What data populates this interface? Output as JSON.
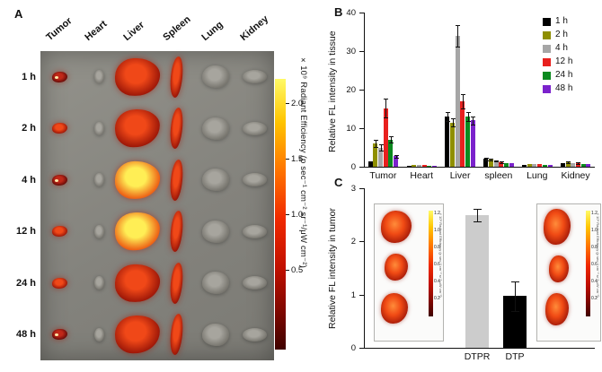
{
  "panels": {
    "a": "A",
    "b": "B",
    "c": "C"
  },
  "panelA": {
    "organ_labels": [
      "Tumor",
      "Heart",
      "Liver",
      "Spleen",
      "Lung",
      "Kidney"
    ],
    "time_labels": [
      "1 h",
      "2 h",
      "4 h",
      "12 h",
      "24 h",
      "48 h"
    ],
    "colorbar": {
      "title": "×10⁹ Radiant Efficiency (p sec⁻¹ cm⁻² sr⁻¹/μW cm⁻²)",
      "ticks": [
        "2.0",
        "1.5",
        "1.0",
        "0.5"
      ]
    },
    "heatmap": [
      [
        1,
        0,
        2,
        2,
        0,
        0
      ],
      [
        2,
        0,
        2,
        2,
        0,
        0
      ],
      [
        1,
        0,
        4,
        2,
        0,
        0
      ],
      [
        2,
        0,
        4,
        2,
        0,
        0
      ],
      [
        2,
        0,
        2,
        2,
        0,
        0
      ],
      [
        1,
        0,
        2,
        2,
        0,
        0
      ]
    ]
  },
  "chart_data": [
    {
      "type": "bar",
      "panel": "B",
      "ylabel": "Relative FL intensity in tissue",
      "ylim": [
        0,
        40
      ],
      "yticks": [
        0,
        10,
        20,
        30,
        40
      ],
      "categories": [
        "Tumor",
        "Heart",
        "Liver",
        "spleen",
        "Lung",
        "Kidney"
      ],
      "legend_position": "top-right",
      "series": [
        {
          "name": "1 h",
          "color": "#000000",
          "values": [
            1.3,
            0.3,
            13.0,
            2.0,
            0.5,
            0.9
          ],
          "errors": [
            0.2,
            0.05,
            1.2,
            0.3,
            0.1,
            0.15
          ]
        },
        {
          "name": "2 h",
          "color": "#8f8f00",
          "values": [
            6.0,
            0.35,
            11.5,
            1.9,
            0.7,
            1.1
          ],
          "errors": [
            0.9,
            0.05,
            1.0,
            0.3,
            0.1,
            0.2
          ]
        },
        {
          "name": "4 h",
          "color": "#a6a6a6",
          "values": [
            5.0,
            0.4,
            34.0,
            1.5,
            0.6,
            0.85
          ],
          "errors": [
            0.7,
            0.05,
            2.8,
            0.2,
            0.1,
            0.15
          ]
        },
        {
          "name": "12 h",
          "color": "#e8201e",
          "values": [
            15.2,
            0.4,
            17.0,
            1.1,
            0.8,
            0.95
          ],
          "errors": [
            2.4,
            0.05,
            1.8,
            0.2,
            0.15,
            0.2
          ]
        },
        {
          "name": "24 h",
          "color": "#0b8a1f",
          "values": [
            7.0,
            0.3,
            13.0,
            0.9,
            0.5,
            0.7
          ],
          "errors": [
            0.8,
            0.05,
            1.2,
            0.15,
            0.1,
            0.1
          ]
        },
        {
          "name": "48 h",
          "color": "#7b22cc",
          "values": [
            2.7,
            0.3,
            12.0,
            0.85,
            0.5,
            0.6
          ],
          "errors": [
            0.4,
            0.05,
            1.0,
            0.15,
            0.1,
            0.1
          ]
        }
      ]
    },
    {
      "type": "bar",
      "panel": "C",
      "ylabel": "Relative FL intensity in tumor",
      "ylim": [
        0,
        3
      ],
      "yticks": [
        0,
        1,
        2,
        3
      ],
      "categories": [
        "DTPR",
        "DTP"
      ],
      "values": [
        2.5,
        0.97
      ],
      "errors": [
        0.12,
        0.28
      ],
      "bar_colors": [
        "#cccccc",
        "#000000"
      ]
    }
  ],
  "panelC_insets": {
    "left_ticks": [
      "1.2",
      "1.0",
      "0.8",
      "0.6",
      "0.4",
      "0.2"
    ],
    "right_ticks": [
      "1.2",
      "1.0",
      "0.8",
      "0.6",
      "0.4",
      "0.2"
    ],
    "scale_title": "×10⁹ Radiant Efficiency (p sec⁻¹ cm⁻² sr⁻¹ μW cm⁻²)"
  }
}
